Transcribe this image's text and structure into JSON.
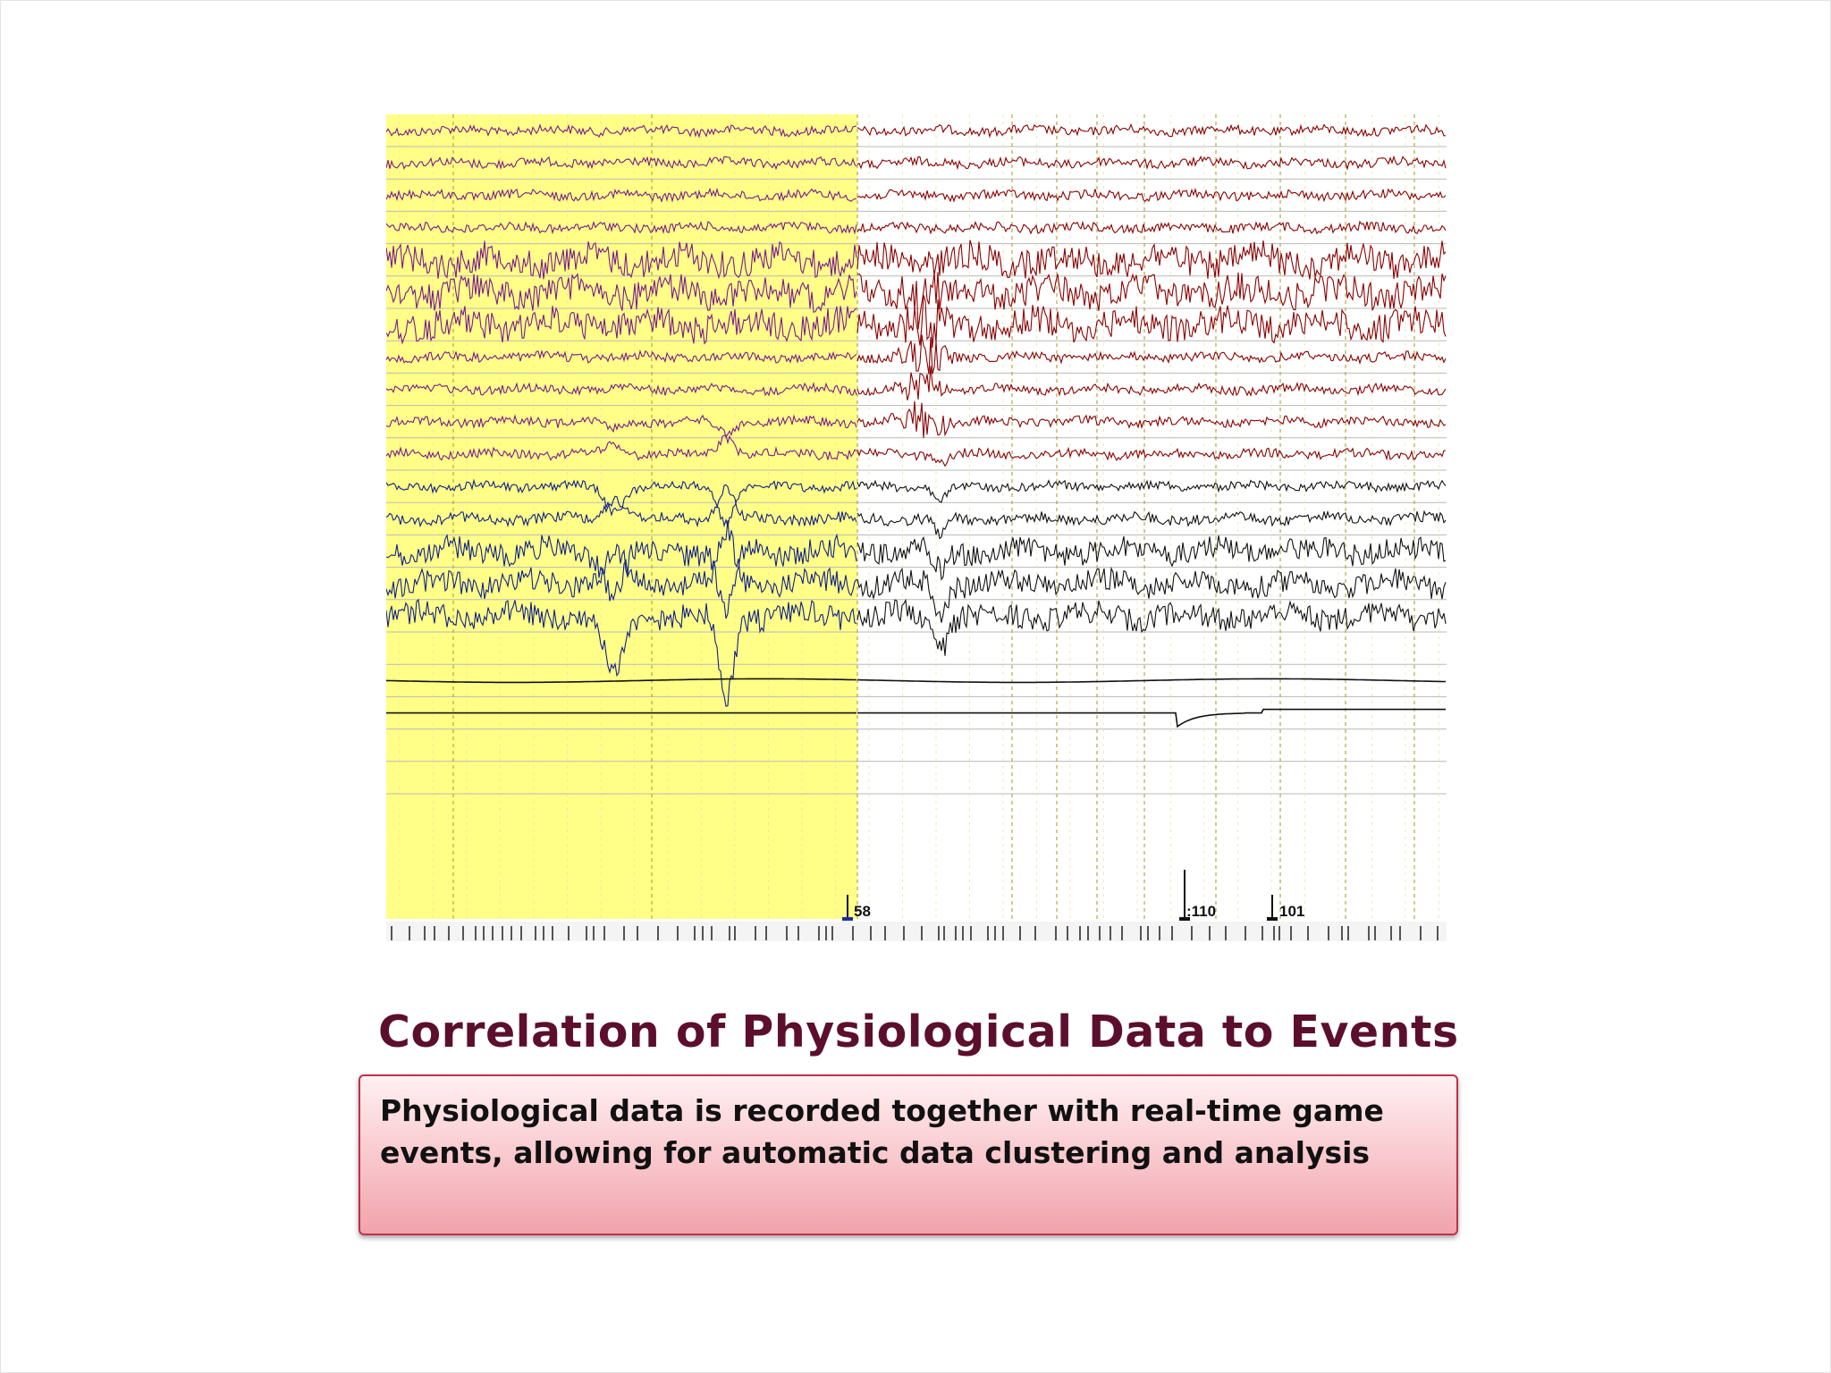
{
  "slide": {
    "title": "Correlation of Physiological Data to Events",
    "caption": "Physiological data is recorded together with real-time game events, allowing for automatic data clustering and analysis"
  },
  "eeg_viewer": {
    "channel_count": 20,
    "event_markers": [
      {
        "label": "58"
      },
      {
        "label": ":110"
      },
      {
        "label": "101"
      }
    ]
  },
  "colors": {
    "title": "#5c0f2c",
    "caption_border": "#c0304a",
    "caption_gradient_top": "#fff0f2",
    "caption_gradient_bottom": "#f2a3ac",
    "highlight_region": "#ffff88",
    "trace_purple": "#7a1a8c",
    "trace_darkred": "#8b0000",
    "trace_blue": "#10208a",
    "trace_black": "#111111",
    "gridline": "#b8b8b8",
    "dashed_marker": "#b5a640"
  }
}
